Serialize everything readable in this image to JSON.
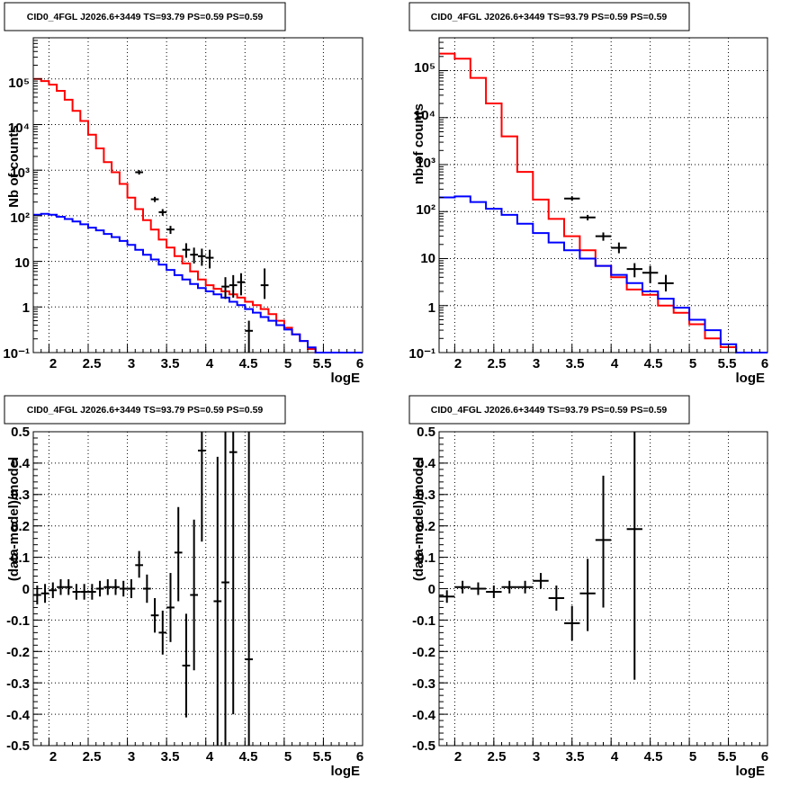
{
  "chart_data": [
    {
      "id": "p1",
      "type": "line",
      "title": "CID0_4FGL J2026.6+3449 TS=93.79 PS=0.59 PS=0.59",
      "xlabel": "logE",
      "ylabel": "Nb of counts",
      "xlim": [
        1.8,
        6.0
      ],
      "ylim": [
        0.1,
        800000
      ],
      "yscale": "log",
      "grid": true,
      "x_ticks": [
        "2",
        "2.5",
        "3",
        "3.5",
        "4",
        "4.5",
        "5",
        "5.5",
        "6"
      ],
      "y_ticks": [
        "10",
        "1",
        "10²",
        "10³",
        "10⁴",
        "10⁵",
        "10⁻¹"
      ],
      "series": [
        {
          "name": "",
          "kind": "hist",
          "color": "#ff0000",
          "x_edges": [
            1.8,
            1.9,
            2.0,
            2.1,
            2.2,
            2.3,
            2.4,
            2.5,
            2.6,
            2.7,
            2.8,
            2.9,
            3.0,
            3.1,
            3.2,
            3.3,
            3.4,
            3.5,
            3.6,
            3.7,
            3.8,
            3.9,
            4.0,
            4.1,
            4.2,
            4.3,
            4.4,
            4.5,
            4.6,
            4.7,
            4.8,
            4.9,
            5.0,
            5.1,
            5.2,
            5.3,
            5.4,
            5.5,
            5.6,
            5.7,
            5.8,
            5.9,
            6.0
          ],
          "values": [
            100000,
            90000,
            75000,
            55000,
            35000,
            20000,
            12000,
            6000,
            3000,
            1500,
            900,
            500,
            250,
            140,
            80,
            50,
            30,
            20,
            13,
            9,
            6,
            4,
            3,
            2.5,
            2.2,
            1.9,
            1.6,
            1.3,
            1.1,
            0.9,
            0.7,
            0.5,
            0.35,
            0.25,
            0.18,
            0.12,
            0.1,
            0.1,
            0.1,
            0.1,
            0.1,
            0.1
          ]
        },
        {
          "name": "",
          "kind": "hist",
          "color": "#0000ff",
          "x_edges": [
            1.8,
            1.9,
            2.0,
            2.1,
            2.2,
            2.3,
            2.4,
            2.5,
            2.6,
            2.7,
            2.8,
            2.9,
            3.0,
            3.1,
            3.2,
            3.3,
            3.4,
            3.5,
            3.6,
            3.7,
            3.8,
            3.9,
            4.0,
            4.1,
            4.2,
            4.3,
            4.4,
            4.5,
            4.6,
            4.7,
            4.8,
            4.9,
            5.0,
            5.1,
            5.2,
            5.3,
            5.4,
            5.5,
            5.6,
            5.7,
            5.8,
            5.9,
            6.0
          ],
          "values": [
            105,
            110,
            105,
            95,
            85,
            75,
            65,
            55,
            48,
            40,
            34,
            28,
            23,
            18,
            14,
            11,
            8.5,
            6.5,
            5,
            4,
            3.2,
            2.6,
            2.2,
            1.9,
            1.6,
            1.3,
            1.1,
            0.9,
            0.75,
            0.6,
            0.5,
            0.4,
            0.32,
            0.25,
            0.18,
            0.13,
            0.1,
            0.1,
            0.1,
            0.1,
            0.1,
            0.1
          ]
        },
        {
          "name": "",
          "kind": "points",
          "color": "#000000",
          "x": [
            3.15,
            3.35,
            3.45,
            3.55,
            3.75,
            3.85,
            3.95,
            4.05,
            4.25,
            4.35,
            4.45,
            4.55,
            4.75
          ],
          "y": [
            900,
            230,
            120,
            50,
            18,
            14,
            13,
            12,
            2.8,
            3,
            3.5,
            0.3,
            3
          ],
          "xerr": 0.05,
          "yerr_low": [
            800,
            200,
            100,
            40,
            12,
            9,
            8,
            7,
            1.5,
            1.6,
            1.8,
            0.1,
            1.5
          ],
          "yerr_high": [
            1000,
            260,
            140,
            60,
            25,
            20,
            19,
            18,
            4.5,
            5,
            5.5,
            0.5,
            7
          ]
        }
      ]
    },
    {
      "id": "p2",
      "type": "line",
      "title": "CID0_4FGL J2026.6+3449 TS=93.79 PS=0.59 PS=0.59",
      "xlabel": "logE",
      "ylabel": "nb of counts",
      "xlim": [
        1.8,
        6.0
      ],
      "ylim": [
        0.1,
        500000
      ],
      "yscale": "log",
      "grid": true,
      "x_ticks": [
        "2",
        "2.5",
        "3",
        "3.5",
        "4",
        "4.5",
        "5",
        "5.5",
        "6"
      ],
      "y_ticks": [
        "10",
        "1",
        "10²",
        "10³",
        "10⁴",
        "10⁵",
        "10⁻¹"
      ],
      "series": [
        {
          "name": "",
          "kind": "hist",
          "color": "#ff0000",
          "x_edges": [
            1.8,
            2.0,
            2.2,
            2.4,
            2.6,
            2.8,
            3.0,
            3.2,
            3.4,
            3.6,
            3.8,
            4.0,
            4.2,
            4.4,
            4.6,
            4.8,
            5.0,
            5.2,
            5.4,
            5.6,
            5.8,
            6.0
          ],
          "values": [
            230000,
            180000,
            70000,
            20000,
            4000,
            700,
            180,
            70,
            30,
            15,
            7,
            4,
            2.2,
            1.7,
            1,
            0.7,
            0.4,
            0.2,
            0.13,
            0.1,
            0.1
          ]
        },
        {
          "name": "",
          "kind": "hist",
          "color": "#0000ff",
          "x_edges": [
            1.8,
            2.0,
            2.2,
            2.4,
            2.6,
            2.8,
            3.0,
            3.2,
            3.4,
            3.6,
            3.8,
            4.0,
            4.2,
            4.4,
            4.6,
            4.8,
            5.0,
            5.2,
            5.4,
            5.6,
            5.8,
            6.0
          ],
          "values": [
            200,
            210,
            160,
            115,
            85,
            55,
            35,
            22,
            15,
            10,
            7,
            4.5,
            3,
            2,
            1.4,
            0.9,
            0.5,
            0.3,
            0.15,
            0.1,
            0.1
          ]
        },
        {
          "name": "",
          "kind": "points",
          "color": "#000000",
          "x": [
            3.5,
            3.7,
            3.9,
            4.1,
            4.3,
            4.5,
            4.7
          ],
          "y": [
            190,
            75,
            30,
            17,
            6,
            5,
            3
          ],
          "xerr": 0.1,
          "yerr_low": [
            170,
            65,
            24,
            13,
            4,
            3,
            2
          ],
          "yerr_high": [
            210,
            85,
            36,
            22,
            8,
            7,
            4.5
          ]
        }
      ]
    },
    {
      "id": "p3",
      "type": "scatter",
      "title": "CID0_4FGL J2026.6+3449 TS=93.79 PS=0.59 PS=0.59",
      "xlabel": "logE",
      "ylabel": "(data-model)/model",
      "xlim": [
        1.8,
        6.0
      ],
      "ylim": [
        -0.5,
        0.5
      ],
      "yscale": "linear",
      "grid": true,
      "x_ticks": [
        "2",
        "2.5",
        "3",
        "3.5",
        "4",
        "4.5",
        "5",
        "5.5",
        "6"
      ],
      "y_ticks": [
        "0.5",
        "0.4",
        "0.3",
        "0.2",
        "0.1",
        "0",
        "-0.1",
        "-0.2",
        "-0.3",
        "-0.4",
        "-0.5"
      ],
      "series": [
        {
          "name": "",
          "kind": "points",
          "color": "#000000",
          "x": [
            1.85,
            1.95,
            2.05,
            2.15,
            2.25,
            2.35,
            2.45,
            2.55,
            2.65,
            2.75,
            2.85,
            2.95,
            3.05,
            3.15,
            3.25,
            3.35,
            3.45,
            3.55,
            3.65,
            3.75,
            3.85,
            3.95,
            4.15,
            4.25,
            4.35,
            4.55
          ],
          "y": [
            -0.02,
            -0.015,
            -0.005,
            0.005,
            0.005,
            -0.01,
            -0.01,
            -0.01,
            0.0,
            0.005,
            0.005,
            0.0,
            0.0,
            0.075,
            0.0,
            -0.085,
            -0.14,
            -0.06,
            0.115,
            -0.245,
            -0.02,
            0.44,
            -0.04,
            0.02,
            0.435,
            -0.225
          ],
          "xerr": 0.05,
          "yerr_low": [
            -0.05,
            -0.045,
            -0.03,
            -0.02,
            -0.02,
            -0.035,
            -0.035,
            -0.035,
            -0.025,
            -0.02,
            -0.02,
            -0.025,
            -0.03,
            0.035,
            -0.045,
            -0.14,
            -0.21,
            -0.17,
            -0.04,
            -0.41,
            -0.26,
            0.15,
            -0.5,
            -0.5,
            -0.4,
            -0.5
          ],
          "yerr_high": [
            0.01,
            0.015,
            0.02,
            0.03,
            0.03,
            0.015,
            0.015,
            0.015,
            0.025,
            0.03,
            0.03,
            0.025,
            0.03,
            0.12,
            0.045,
            -0.03,
            -0.07,
            0.05,
            0.26,
            -0.08,
            0.22,
            0.5,
            0.42,
            0.5,
            0.5,
            0.5
          ]
        }
      ]
    },
    {
      "id": "p4",
      "type": "scatter",
      "title": "CID0_4FGL J2026.6+3449 TS=93.79 PS=0.59 PS=0.59",
      "xlabel": "logE",
      "ylabel": "(data-model)/model",
      "xlim": [
        1.8,
        6.0
      ],
      "ylim": [
        -0.5,
        0.5
      ],
      "yscale": "linear",
      "grid": true,
      "x_ticks": [
        "2",
        "2.5",
        "3",
        "3.5",
        "4",
        "4.5",
        "5",
        "5.5",
        "6"
      ],
      "y_ticks": [
        "0.5",
        "0.4",
        "0.3",
        "0.2",
        "0.1",
        "0",
        "-0.1",
        "-0.2",
        "-0.3",
        "-0.4",
        "-0.5"
      ],
      "series": [
        {
          "name": "",
          "kind": "points",
          "color": "#000000",
          "x": [
            1.9,
            2.1,
            2.3,
            2.5,
            2.7,
            2.9,
            3.1,
            3.3,
            3.5,
            3.7,
            3.9,
            4.3
          ],
          "y": [
            -0.025,
            0.005,
            0.0,
            -0.01,
            0.005,
            0.005,
            0.025,
            -0.03,
            -0.11,
            -0.015,
            0.155,
            0.19
          ],
          "xerr": 0.1,
          "yerr_low": [
            -0.045,
            -0.015,
            -0.02,
            -0.03,
            -0.015,
            -0.015,
            0.0,
            -0.07,
            -0.165,
            -0.135,
            -0.06,
            -0.29
          ],
          "yerr_high": [
            -0.005,
            0.025,
            0.02,
            0.01,
            0.025,
            0.025,
            0.05,
            0.01,
            -0.055,
            0.095,
            0.36,
            0.5
          ]
        }
      ]
    }
  ]
}
